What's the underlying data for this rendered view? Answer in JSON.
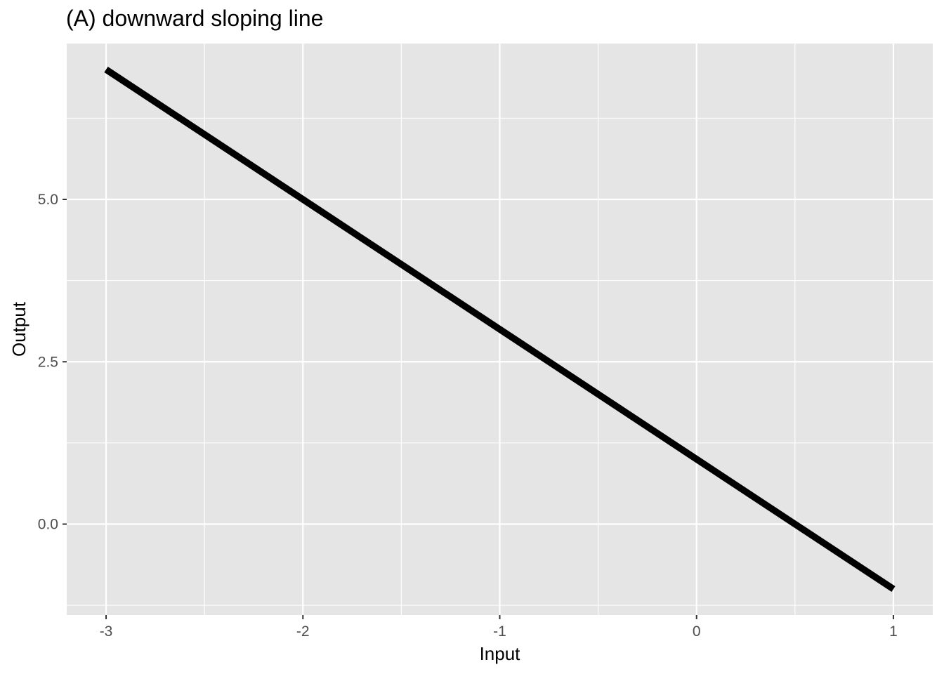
{
  "chart_data": {
    "type": "line",
    "title": "(A) downward sloping line",
    "xlabel": "Input",
    "ylabel": "Output",
    "xlim": [
      -3.2,
      1.2
    ],
    "ylim": [
      -1.4,
      7.4
    ],
    "x_ticks": [
      -3,
      -2,
      -1,
      0,
      1
    ],
    "x_tick_labels": [
      "-3",
      "-2",
      "-1",
      "0",
      "1"
    ],
    "y_ticks": [
      0,
      2.5,
      5
    ],
    "y_tick_labels": [
      "0.0",
      "2.5",
      "5.0"
    ],
    "x_minor": [
      -2.5,
      -1.5,
      -0.5,
      0.5
    ],
    "y_minor": [
      -1.25,
      1.25,
      3.75,
      6.25
    ],
    "grid": true,
    "series": [
      {
        "x": [
          -3,
          -2,
          -1,
          0,
          1
        ],
        "y": [
          7,
          5,
          3,
          1,
          -1
        ],
        "color": "#000000"
      }
    ],
    "colors": {
      "panel": "#e5e5e5",
      "grid": "#ffffff",
      "line": "#000000"
    }
  }
}
